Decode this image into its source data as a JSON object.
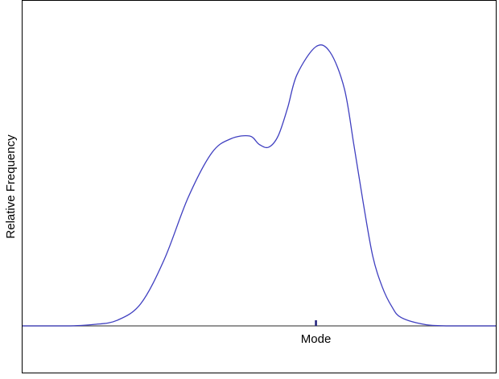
{
  "chart_data": {
    "type": "line",
    "title": "",
    "xlabel": "",
    "ylabel": "Relative Frequency",
    "x_ticks": [],
    "y_ticks": [],
    "grid": false,
    "legend": "none",
    "xlim": [
      0,
      100
    ],
    "ylim": [
      0,
      100
    ],
    "series": [
      {
        "color": "#3f3fc0",
        "x": [
          0,
          5,
          10,
          15,
          20,
          25,
          30,
          35,
          40,
          44,
          48,
          50,
          52,
          54,
          56,
          58,
          62,
          65,
          68,
          70,
          72,
          74,
          76,
          78,
          80,
          85,
          90,
          95,
          100
        ],
        "y": [
          0,
          0,
          0,
          0.5,
          2,
          8,
          24,
          46,
          62,
          67,
          68,
          65,
          64,
          68,
          78,
          90,
          100,
          98,
          85,
          65,
          44,
          25,
          14,
          7,
          3,
          0.5,
          0,
          0,
          0
        ]
      }
    ],
    "annotations": [
      {
        "label": "Mode",
        "x": 62
      }
    ]
  }
}
